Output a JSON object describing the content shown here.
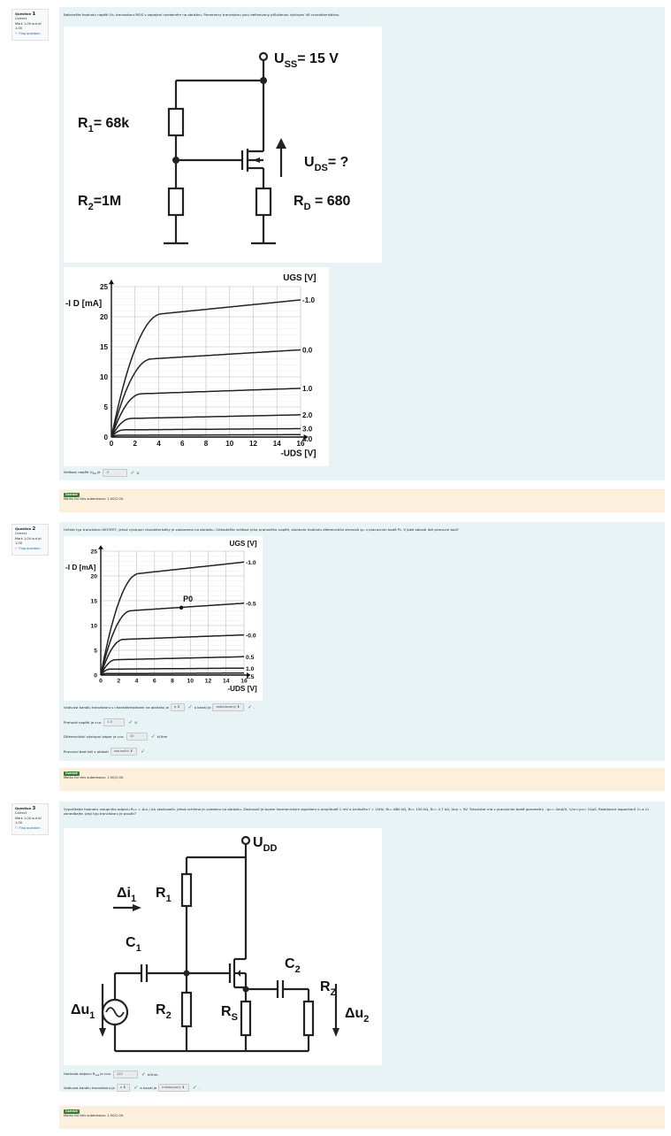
{
  "questions": [
    {
      "number": "1",
      "label": "Question",
      "state": "Correct",
      "mark": "Mark 1.00 out of 1.00",
      "flag": "Flag question",
      "text": "Nalezněte hodnotu napětí U₂ₛ tranzistoru MOS v zapojení uvedeném na obrázku. Parametry tranzistoru jsou definovány příloženou výstupní VA charakteristikou.",
      "circuit": {
        "uss": "U",
        "uss_sub": "SS",
        "uss_val": "= 15 V",
        "r1": "R",
        "r1_sub": "1",
        "r1_val": "= 68k",
        "r2": "R",
        "r2_sub": "2",
        "r2_val": "=1M",
        "rd": "R",
        "rd_sub": "D",
        "rd_val": " = 680",
        "uds": "U",
        "uds_sub": "DS",
        "uds_val": "= ?"
      },
      "answer_prefix": "Velikost napětí U",
      "answer_prefix_sub": "DS",
      "answer_prefix_end": " je",
      "answer_value": "-3",
      "answer_unit": "V.",
      "feedback_badge": "Correct",
      "feedback_text": "Marks for this submission: 1.00/1.00."
    },
    {
      "number": "2",
      "label": "Question",
      "state": "Correct",
      "mark": "Mark 1.00 out of 1.00",
      "flag": "Flag question",
      "text": "Určete typ tranzistoru MOSFET, jehož výstupní charakteristiky je zobrazena na obrázku. Odhadněte velikost jeho prahového napětí, stanovte hodnotu diferenciální strmosti gₘ v pracovním bodě P₀. V jaké oblasti leží pracovní bod?",
      "r1_prefix": "Vodivost kanálu tranzistoru s charakteristikami na obrázku je",
      "r1_select1": "p",
      "r1_mid": "a kanál je",
      "r1_select2": "zabudovaný",
      "r1_end": ".",
      "r2_prefix": "Prahové napětí je cca.",
      "r2_value": "1.5",
      "r2_unit": "V.",
      "r3_prefix": "Diferenciální výstupní odpor je cca.",
      "r3_value": "10",
      "r3_unit": "kOhm",
      "r4_prefix": "Pracovní bod leží v oblasti",
      "r4_select": "saturační",
      "r4_end": ".",
      "feedback_badge": "Correct",
      "feedback_text": "Marks for this submission: 1.00/1.00."
    },
    {
      "number": "3",
      "label": "Question",
      "state": "Correct",
      "mark": "Mark 1.00 out of 1.00",
      "flag": "Flag question",
      "text": "Vypočítejte hodnotu vstupního odporu Rᵥₛₜ = Δu₁ / Δi₁ zesilovače, jehož schéma je uvedeno na obrázku. Zesilovač je buzen harmonickým signálem o amplitudě 1 mV a kmitočtu f = 1kHz, R₁= 680 kΩ, R₂= 150 kΩ, Rₛ= 4,7 kΩ, Uᴅᴅ = 9V. Tranzistor má v pracovním bodě parametry : gₘ= 4mA/V, 1/rᴅ=y₂₂= 10μS. Reaktance kapacitorů C₁ a C₂ zanedbejte. Jaký typ tranzistoru je použit?",
      "circuit": {
        "udd": "U",
        "udd_sub": "DD",
        "di": "Δi",
        "di_sub": "1",
        "r1": "R",
        "r1_sub": "1",
        "c1": "C",
        "c1_sub": "1",
        "c2": "C",
        "c2_sub": "2",
        "rz": "R",
        "rz_sub": "Z",
        "du1": "Δu",
        "du1_sub": "1",
        "r2": "R",
        "r2_sub": "2",
        "rs": "R",
        "rs_sub": "S",
        "du2": "Δu",
        "du2_sub": "2"
      },
      "r1_prefix": "Hodnota odporu R",
      "r1_prefix_sub": "vst",
      "r1_prefix_end": " je cca.",
      "r1_value": "122",
      "r1_unit": "kOhm.",
      "r2_prefix": "Vodivost kanálu tranzistoru je",
      "r2_select1": "n",
      "r2_mid": "a kanál je",
      "r2_select2": "indukovaný",
      "r2_end": ".",
      "feedback_badge": "Correct",
      "feedback_text": "Marks for this submission: 1.00/1.00."
    }
  ],
  "chart_data": [
    {
      "type": "line",
      "title": "",
      "ylabel": "-I_D [mA]",
      "xlabel": "-U_DS [V]",
      "legend_title": "U_GS [V]",
      "xlim": [
        0,
        16
      ],
      "ylim": [
        0,
        25
      ],
      "xticks": [
        0,
        2,
        4,
        6,
        8,
        10,
        12,
        14,
        16
      ],
      "yticks": [
        0,
        5,
        10,
        15,
        20,
        25
      ],
      "grid": true,
      "series": [
        {
          "name": "-1.0",
          "sat_current": 20.5,
          "end_current": 22.8
        },
        {
          "name": "0.0",
          "sat_current": 13.0,
          "end_current": 14.5
        },
        {
          "name": "1.0",
          "sat_current": 7.2,
          "end_current": 8.1
        },
        {
          "name": "2.0",
          "sat_current": 3.1,
          "end_current": 3.7
        },
        {
          "name": "3.0",
          "sat_current": 1.2,
          "end_current": 1.4
        },
        {
          "name": "4.0",
          "sat_current": 0.3,
          "end_current": 0.4
        }
      ]
    },
    {
      "type": "line",
      "title": "",
      "ylabel": "-I_D [mA]",
      "xlabel": "-U_DS [V]",
      "legend_title": "U_GS [V]",
      "xlim": [
        0,
        16
      ],
      "ylim": [
        0,
        25
      ],
      "xticks": [
        0,
        2,
        4,
        6,
        8,
        10,
        12,
        14,
        16
      ],
      "yticks": [
        0,
        5,
        10,
        15,
        20,
        25
      ],
      "grid": true,
      "point": {
        "label": "P",
        "label_sub": "0",
        "x": 9,
        "y": 13.6
      },
      "series": [
        {
          "name": "-1.0",
          "sat_current": 20.5,
          "end_current": 22.8
        },
        {
          "name": "-0.5",
          "sat_current": 13.0,
          "end_current": 14.5
        },
        {
          "name": "-0.0",
          "sat_current": 7.2,
          "end_current": 8.1
        },
        {
          "name": "0.5",
          "sat_current": 3.1,
          "end_current": 3.7
        },
        {
          "name": "1.0",
          "sat_current": 1.2,
          "end_current": 1.4
        },
        {
          "name": "1.5",
          "sat_current": 0.3,
          "end_current": 0.4
        }
      ]
    }
  ]
}
